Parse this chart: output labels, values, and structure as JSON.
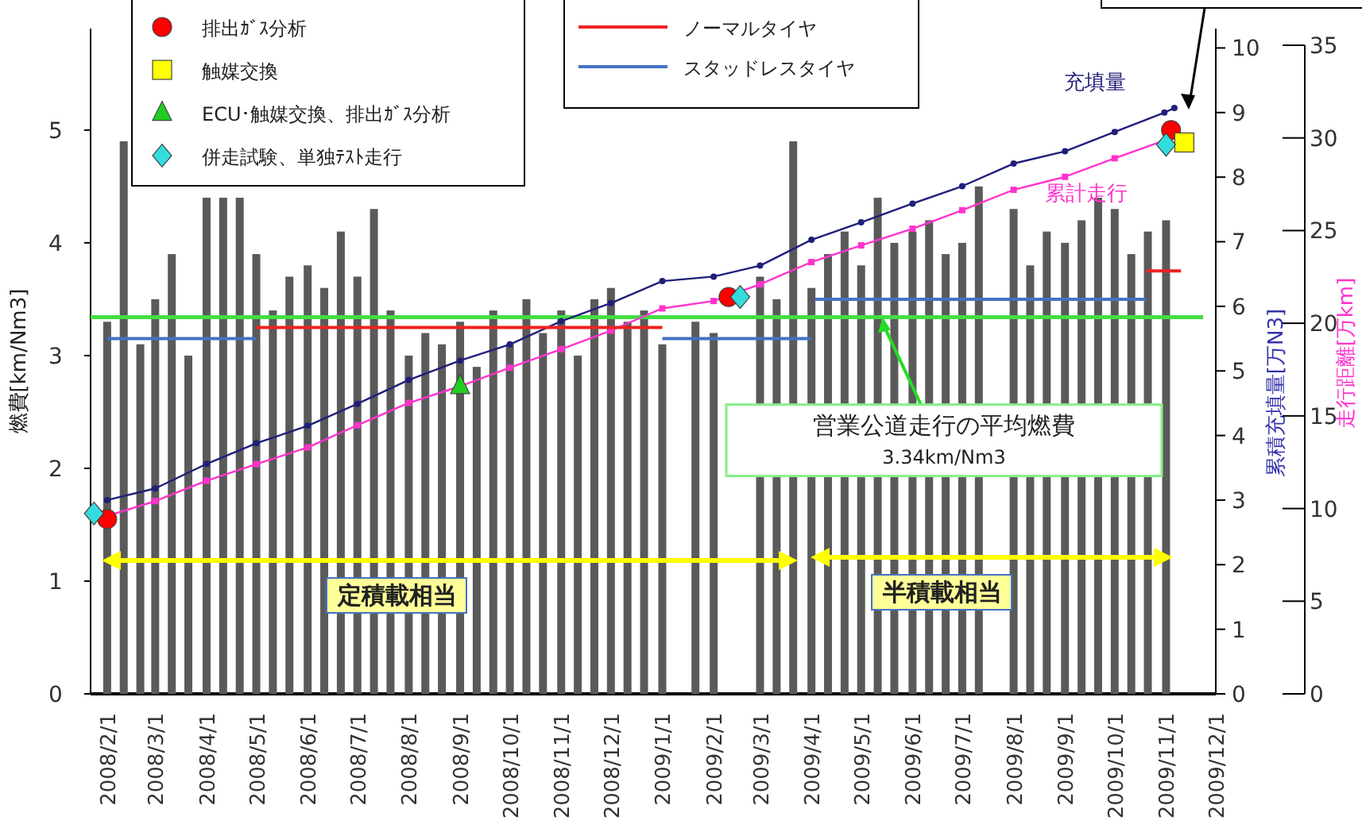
{
  "chart_data": {
    "type": "bar",
    "ylabel": "燃費[km/Nm3]",
    "y2label": "累積充填量[万N3]",
    "y3label": "走行距離[万km]",
    "xlim": [
      "2008-01-22",
      "2009-12-01"
    ],
    "xticks": [
      {
        "value": "2008-02-01",
        "label": "2008/2/1"
      },
      {
        "value": "2008-03-01",
        "label": "2008/3/1"
      },
      {
        "value": "2008-04-01",
        "label": "2008/4/1"
      },
      {
        "value": "2008-05-01",
        "label": "2008/5/1"
      },
      {
        "value": "2008-06-01",
        "label": "2008/6/1"
      },
      {
        "value": "2008-07-01",
        "label": "2008/7/1"
      },
      {
        "value": "2008-08-01",
        "label": "2008/8/1"
      },
      {
        "value": "2008-09-01",
        "label": "2008/9/1"
      },
      {
        "value": "2008-10-01",
        "label": "2008/10/1"
      },
      {
        "value": "2008-11-01",
        "label": "2008/11/1"
      },
      {
        "value": "2008-12-01",
        "label": "2008/12/1"
      },
      {
        "value": "2009-01-01",
        "label": "2009/1/1"
      },
      {
        "value": "2009-02-01",
        "label": "2009/2/1"
      },
      {
        "value": "2009-03-01",
        "label": "2009/3/1"
      },
      {
        "value": "2009-04-01",
        "label": "2009/4/1"
      },
      {
        "value": "2009-05-01",
        "label": "2009/5/1"
      },
      {
        "value": "2009-06-01",
        "label": "2009/6/1"
      },
      {
        "value": "2009-07-01",
        "label": "2009/7/1"
      },
      {
        "value": "2009-08-01",
        "label": "2009/8/1"
      },
      {
        "value": "2009-09-01",
        "label": "2009/9/1"
      },
      {
        "value": "2009-10-01",
        "label": "2009/10/1"
      },
      {
        "value": "2009-11-01",
        "label": "2009/11/1"
      },
      {
        "value": "2009-12-01",
        "label": "2009/12/1"
      }
    ],
    "ylim": [
      0,
      5.9
    ],
    "yticks": [
      0,
      1,
      2,
      3,
      4,
      5
    ],
    "y2lim": [
      0,
      10.3
    ],
    "y2ticks": [
      0,
      1,
      2,
      3,
      4,
      5,
      6,
      7,
      8,
      9,
      10
    ],
    "y3lim": [
      0,
      35.9
    ],
    "y3ticks": [
      0,
      5,
      10,
      15,
      20,
      25,
      30,
      35
    ],
    "legend": "top",
    "grid": false,
    "series": [
      {
        "color": "#5a5a5a",
        "x": [
          "2008-02-01",
          "2008-02-11",
          "2008-02-21",
          "2008-03-01",
          "2008-03-11",
          "2008-03-21",
          "2008-04-01",
          "2008-04-11",
          "2008-04-21",
          "2008-05-01",
          "2008-05-11",
          "2008-05-21",
          "2008-06-01",
          "2008-06-11",
          "2008-06-21",
          "2008-07-01",
          "2008-07-11",
          "2008-07-21",
          "2008-08-01",
          "2008-08-11",
          "2008-08-21",
          "2008-09-01",
          "2008-09-11",
          "2008-09-21",
          "2008-10-01",
          "2008-10-11",
          "2008-10-21",
          "2008-11-01",
          "2008-11-11",
          "2008-11-21",
          "2008-12-01",
          "2008-12-11",
          "2008-12-21",
          "2009-01-01",
          "2009-01-11",
          "2009-01-21",
          "2009-02-01",
          "2009-02-11",
          "2009-02-21",
          "2009-03-01",
          "2009-03-11",
          "2009-03-21",
          "2009-04-01",
          "2009-04-11",
          "2009-04-21",
          "2009-05-01",
          "2009-05-11",
          "2009-05-21",
          "2009-06-01",
          "2009-06-11",
          "2009-06-21",
          "2009-07-01",
          "2009-07-11",
          "2009-07-21",
          "2009-08-01",
          "2009-08-11",
          "2009-08-21",
          "2009-09-01",
          "2009-09-11",
          "2009-09-21",
          "2009-10-01",
          "2009-10-11",
          "2009-10-21",
          "2009-11-01"
        ],
        "values": [
          3.3,
          4.9,
          3.1,
          3.5,
          3.9,
          3.0,
          4.4,
          4.4,
          4.4,
          3.9,
          3.4,
          3.7,
          3.8,
          3.6,
          4.1,
          3.7,
          4.3,
          3.4,
          3.0,
          3.2,
          3.1,
          3.3,
          2.9,
          3.4,
          3.1,
          3.5,
          3.2,
          3.4,
          3.0,
          3.5,
          3.6,
          3.3,
          3.4,
          3.1,
          null,
          3.3,
          3.2,
          null,
          null,
          3.7,
          3.5,
          4.9,
          3.6,
          3.9,
          4.1,
          3.8,
          4.4,
          4.0,
          4.1,
          4.2,
          3.9,
          4.0,
          4.5,
          null,
          4.3,
          3.8,
          4.1,
          4.0,
          4.2,
          4.4,
          4.3,
          3.9,
          4.1,
          4.2
        ]
      },
      {
        "type": "line",
        "name": "充填量",
        "axis": "y2",
        "color": "#1f1f7a",
        "marker": "circle",
        "x": [
          "2008-02-01",
          "2008-03-01",
          "2008-04-01",
          "2008-05-01",
          "2008-06-01",
          "2008-07-01",
          "2008-08-01",
          "2008-09-01",
          "2008-10-01",
          "2008-11-01",
          "2008-12-01",
          "2009-01-01",
          "2009-02-01",
          "2009-03-01",
          "2009-04-01",
          "2009-05-01",
          "2009-06-01",
          "2009-07-01",
          "2009-08-01",
          "2009-09-01",
          "2009-10-01",
          "2009-10-31",
          "2009-11-06"
        ],
        "values": [
          3.0,
          3.18,
          3.56,
          3.88,
          4.15,
          4.49,
          4.86,
          5.16,
          5.41,
          5.77,
          6.05,
          6.39,
          6.46,
          6.63,
          7.03,
          7.3,
          7.59,
          7.86,
          8.21,
          8.4,
          8.7,
          9.0,
          9.07
        ]
      },
      {
        "type": "line",
        "name": "累計走行",
        "axis": "y3",
        "color": "#ff33cc",
        "marker": "square",
        "x": [
          "2008-02-01",
          "2008-03-01",
          "2008-04-01",
          "2008-05-01",
          "2008-06-01",
          "2008-07-01",
          "2008-08-01",
          "2008-09-01",
          "2008-10-01",
          "2008-11-01",
          "2008-12-01",
          "2009-01-01",
          "2009-02-01",
          "2009-03-01",
          "2009-04-01",
          "2009-05-01",
          "2009-06-01",
          "2009-07-01",
          "2009-08-01",
          "2009-09-01",
          "2009-10-01",
          "2009-11-01"
        ],
        "values": [
          9.6,
          10.4,
          11.5,
          12.4,
          13.3,
          14.5,
          15.7,
          16.6,
          17.6,
          18.6,
          19.6,
          20.8,
          21.2,
          22.1,
          23.3,
          24.2,
          25.1,
          26.1,
          27.2,
          27.9,
          28.9,
          29.9
        ]
      },
      {
        "type": "line",
        "name": "ノーマルタイヤ",
        "color": "#ee2222",
        "marker": "none",
        "x": [
          "2008-05-01",
          "2009-01-01",
          "2009-01-02",
          "2009-10-20",
          "2009-11-10"
        ],
        "values": [
          3.25,
          3.25,
          null,
          3.75,
          3.75
        ]
      },
      {
        "type": "line",
        "name": "スタッドレスタイヤ",
        "color": "#4472c4",
        "marker": "none",
        "x": [
          "2008-02-01",
          "2008-05-01",
          "2008-05-02",
          "2009-01-01",
          "2009-04-01",
          "2009-04-02",
          "2009-04-03",
          "2009-10-20"
        ],
        "values": [
          3.15,
          3.15,
          null,
          3.15,
          3.15,
          null,
          3.5,
          3.5
        ]
      },
      {
        "type": "scatter",
        "name": "排出ｶﾞｽ分析",
        "color": "#ff0000",
        "marker": "circle",
        "x": [
          "2008-02-01",
          "2009-02-10",
          "2009-11-04"
        ],
        "values": [
          1.55,
          3.52,
          5.0
        ]
      },
      {
        "type": "scatter",
        "name": "触媒交換",
        "color": "#ffff00",
        "marker": "square",
        "x": [
          "2009-11-12"
        ],
        "values": [
          4.89
        ]
      },
      {
        "type": "scatter",
        "name": "ECU･触媒交換、排出ｶﾞｽ分析",
        "color": "#22cc22",
        "marker": "triangle",
        "x": [
          "2008-09-01"
        ],
        "values": [
          2.73
        ]
      },
      {
        "type": "scatter",
        "name": "併走試験、単独ﾃｽﾄ走行",
        "color": "#33dddd",
        "marker": "diamond",
        "x": [
          "2008-01-24",
          "2009-02-17",
          "2009-11-01"
        ],
        "values": [
          1.6,
          3.52,
          4.87
        ]
      }
    ],
    "ref_lines": [
      {
        "axis": "y",
        "value": 3.34,
        "color": "#44dd44"
      }
    ],
    "annotations": [
      {
        "text": "営業公道走行の平均燃費",
        "x": "2009-05-14",
        "y": 3.34
      },
      "3.34km/Nm3",
      "定積載相当",
      "半積載相当"
    ]
  }
}
